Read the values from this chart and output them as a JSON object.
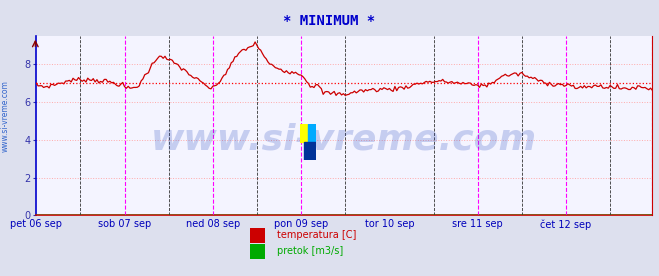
{
  "title": "* MINIMUM *",
  "title_color": "#0000cc",
  "title_fontsize": 10,
  "bg_color": "#dde0ee",
  "plot_bg_color": "#f4f4ff",
  "ylim": [
    0,
    9.5
  ],
  "yticks": [
    0,
    2,
    4,
    6,
    8
  ],
  "ylabel_left": "www.si-vreme.com",
  "grid_color": "#ffaaaa",
  "grid_linestyle": ":",
  "line_color": "#cc0000",
  "line_width": 0.9,
  "average_line_value": 7.0,
  "average_line_color": "#ff0000",
  "average_line_style": ":",
  "day_labels": [
    "pet 06 sep",
    "sob 07 sep",
    "ned 08 sep",
    "pon 09 sep",
    "tor 10 sep",
    "sre 11 sep",
    "čet 12 sep"
  ],
  "day_positions": [
    0,
    48,
    96,
    144,
    192,
    240,
    288
  ],
  "magenta_lines_x": [
    48,
    96,
    144,
    240,
    288,
    335
  ],
  "black_dashed_lines_x": [
    24,
    72,
    120,
    168,
    216,
    264,
    312
  ],
  "border_color_left": "#0000cc",
  "border_color_bottom": "#cc0000",
  "border_color_right": "#cc0000",
  "arrow_color": "#cc0000",
  "legend_temp_color": "#cc0000",
  "legend_flow_color": "#00aa00",
  "legend_temp_label": "temperatura [C]",
  "legend_flow_label": "pretok [m3/s]",
  "watermark_text": "www.si-vreme.com",
  "watermark_color": "#2244bb",
  "watermark_alpha": 0.22,
  "watermark_fontsize": 26
}
